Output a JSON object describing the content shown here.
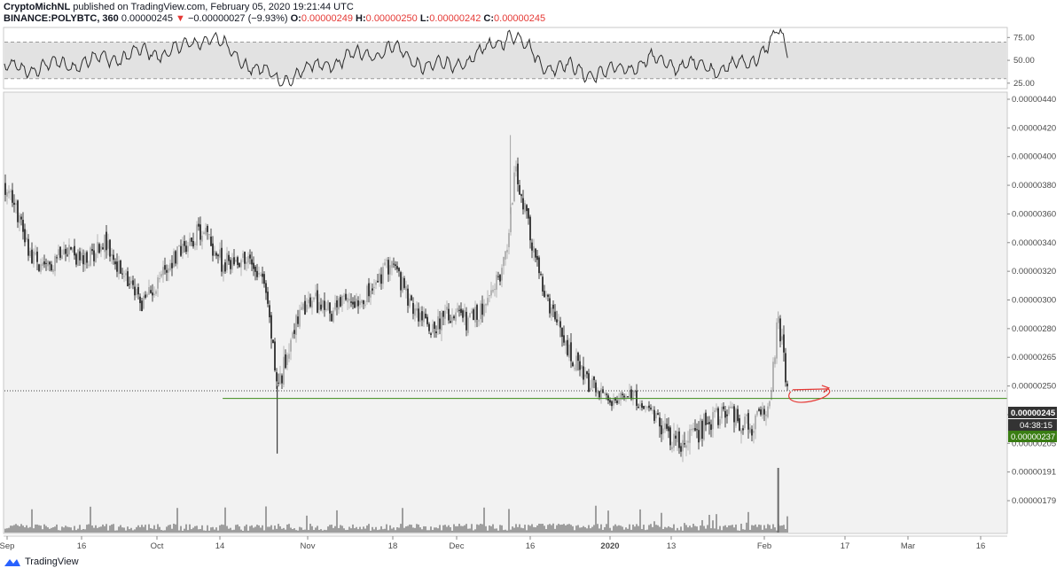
{
  "header": {
    "author": "CryptoMichNL",
    "published": " published on TradingView.com, February 05, 2020 19:21:44 UTC",
    "symbol": "BINANCE:POLYBTC, 360",
    "last": "0.00000245",
    "change_arrow": "▼",
    "change": "−0.00000027 (−9.93%)",
    "o_label": "O:",
    "o_value": "0.00000249",
    "h_label": "H:",
    "h_value": "0.00000250",
    "l_label": "L:",
    "l_value": "0.00000242",
    "c_label": "C:",
    "c_value": "0.00000245"
  },
  "footer": {
    "brand": "TradingView",
    "logo_icon": "tradingview-logo-icon"
  },
  "colors": {
    "pane_bg": "#f2f2f2",
    "rsi_band": "#e2e2e2",
    "up": "#a5a5a5",
    "down": "#141414",
    "support": "#3d8b1a",
    "marker": "#e53935",
    "badge_dark": "#333333",
    "badge_green": "#3a7d13"
  },
  "rsi_axis": {
    "ticks": [
      "75.00",
      "50.00",
      "25.00"
    ],
    "values": [
      75,
      50,
      25
    ],
    "band": [
      30,
      70
    ],
    "ylim": [
      20,
      85
    ]
  },
  "price_axis": {
    "ticks": [
      "0.00000440",
      "0.00000420",
      "0.00000400",
      "0.00000380",
      "0.00000360",
      "0.00000340",
      "0.00000320",
      "0.00000300",
      "0.00000280",
      "0.00000265",
      "0.00000250",
      "0.00000220",
      "0.00000205",
      "0.00000191",
      "0.00000179"
    ],
    "values": [
      440,
      420,
      400,
      380,
      360,
      340,
      320,
      300,
      280,
      265,
      250,
      220,
      205,
      191,
      179
    ]
  },
  "time_axis": {
    "labels": [
      "Sep",
      "16",
      "Oct",
      "14",
      "Nov",
      "18",
      "Dec",
      "16",
      "2020",
      "13",
      "Feb",
      "17",
      "Mar",
      "16"
    ],
    "bold": [
      false,
      false,
      false,
      false,
      false,
      false,
      false,
      false,
      true,
      false,
      false,
      false,
      false,
      false
    ]
  },
  "badges": {
    "current_price": "0.00000245",
    "countdown": "04:38:15",
    "support_price": "0.00000237"
  },
  "chart_data": {
    "type": "candlestick",
    "title": "",
    "symbol": "BINANCE:POLYBTC",
    "interval": "360",
    "x_range": [
      "2019-08-31",
      "2020-03-20"
    ],
    "y_unit": "BTC (×1e-8 in series values)",
    "ylim": [
      170,
      442
    ],
    "price_series": {
      "name": "POLYBTC close (×1e-8)",
      "x": [
        "2019-09-01",
        "2019-09-05",
        "2019-09-08",
        "2019-09-12",
        "2019-09-16",
        "2019-09-20",
        "2019-09-24",
        "2019-09-28",
        "2019-10-02",
        "2019-10-06",
        "2019-10-10",
        "2019-10-14",
        "2019-10-18",
        "2019-10-22",
        "2019-10-25",
        "2019-10-26",
        "2019-10-28",
        "2019-11-01",
        "2019-11-05",
        "2019-11-09",
        "2019-11-13",
        "2019-11-17",
        "2019-11-21",
        "2019-11-25",
        "2019-11-29",
        "2019-12-03",
        "2019-12-07",
        "2019-12-10",
        "2019-12-12",
        "2019-12-14",
        "2019-12-18",
        "2019-12-22",
        "2019-12-26",
        "2019-12-30",
        "2020-01-01",
        "2020-01-04",
        "2020-01-08",
        "2020-01-12",
        "2020-01-16",
        "2020-01-20",
        "2020-01-24",
        "2020-01-28",
        "2020-02-01",
        "2020-02-02",
        "2020-02-03",
        "2020-02-04",
        "2020-02-05"
      ],
      "values": [
        380,
        335,
        318,
        340,
        325,
        342,
        315,
        298,
        320,
        338,
        350,
        325,
        330,
        320,
        250,
        255,
        280,
        300,
        292,
        300,
        305,
        328,
        295,
        282,
        290,
        285,
        300,
        330,
        390,
        360,
        300,
        270,
        252,
        240,
        230,
        245,
        220,
        210,
        205,
        218,
        225,
        212,
        225,
        265,
        285,
        265,
        245
      ]
    },
    "extremes": {
      "high": {
        "x": "2019-12-11",
        "value": 415
      },
      "spike_low": {
        "x": "2019-10-25",
        "value": 200
      },
      "recent_high": {
        "x": "2020-02-03",
        "value": 292
      }
    },
    "rsi": {
      "x": [
        "2019-09-01",
        "2019-09-12",
        "2019-09-24",
        "2019-10-06",
        "2019-10-11",
        "2019-10-18",
        "2019-10-25",
        "2019-11-05",
        "2019-11-17",
        "2019-11-25",
        "2019-12-03",
        "2019-12-11",
        "2019-12-18",
        "2019-12-30",
        "2020-01-08",
        "2020-01-20",
        "2020-01-28",
        "2020-02-03",
        "2020-02-05"
      ],
      "values": [
        40,
        45,
        55,
        62,
        78,
        50,
        28,
        48,
        63,
        42,
        50,
        80,
        45,
        35,
        50,
        42,
        45,
        82,
        52
      ]
    },
    "volume_peak": {
      "x": "2020-02-03"
    },
    "horizontal_lines": [
      {
        "name": "support",
        "value": 237,
        "from": "2019-10-14"
      },
      {
        "name": "last price",
        "value": 245
      }
    ],
    "annotation": {
      "type": "arrow",
      "x": "2020-02-05",
      "value": 246
    }
  }
}
